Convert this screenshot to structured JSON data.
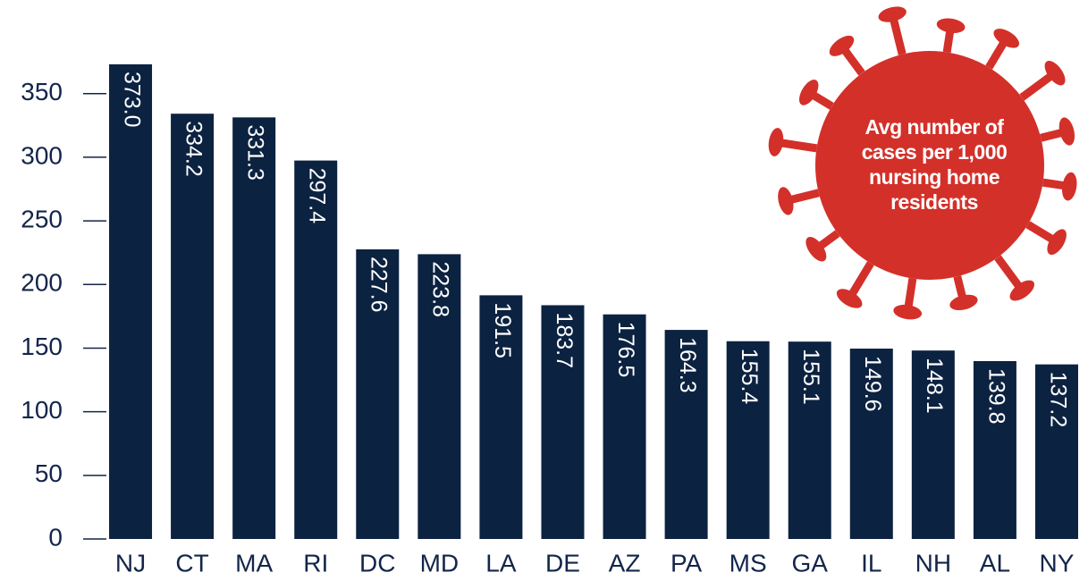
{
  "chart_data": {
    "type": "bar",
    "title": "Avg number of cases per 1,000 nursing home residents",
    "categories": [
      "NJ",
      "CT",
      "MA",
      "RI",
      "DC",
      "MD",
      "LA",
      "DE",
      "AZ",
      "PA",
      "MS",
      "GA",
      "IL",
      "NH",
      "AL",
      "NY"
    ],
    "values": [
      373.0,
      334.2,
      331.3,
      297.4,
      227.6,
      223.8,
      191.5,
      183.7,
      176.5,
      164.3,
      155.4,
      155.1,
      149.6,
      148.1,
      139.8,
      137.2
    ],
    "value_labels": [
      "373.0",
      "334.2",
      "331.3",
      "297.4",
      "227.6",
      "223.8",
      "191.5",
      "183.7",
      "176.5",
      "164.3",
      "155.4",
      "155.1",
      "149.6",
      "148.1",
      "139.8",
      "137.2"
    ],
    "color": "#0c2241",
    "ylim": [
      0,
      380
    ],
    "yticks": [
      0,
      50,
      100,
      150,
      200,
      250,
      300,
      350
    ]
  }
}
